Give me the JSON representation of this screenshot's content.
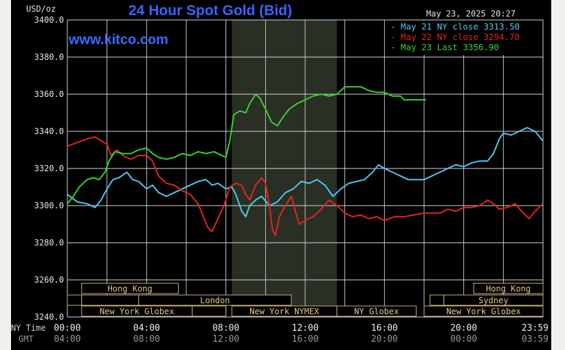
{
  "chart_data": {
    "type": "line",
    "title": "24 Hour Spot Gold (Bid)",
    "unit_label": "USD/oz",
    "date_label": "May 23, 2025 20:27",
    "watermark": "www.kitco.com",
    "ylim": [
      3240,
      3400
    ],
    "yticks": [
      "3400.0",
      "3380.0",
      "3360.0",
      "3340.0",
      "3320.0",
      "3300.0",
      "3280.0",
      "3260.0",
      "3240.0"
    ],
    "ytick_values": [
      3400,
      3380,
      3360,
      3340,
      3320,
      3300,
      3280,
      3260,
      3240
    ],
    "xlim": [
      0,
      24
    ],
    "x_unit": "hours (NY time, 00:00 to 23:59)",
    "xrow1_label": "NY Time",
    "xrow2_label": "GMT",
    "xticks_ny": [
      "00:00",
      "04:00",
      "08:00",
      "12:00",
      "16:00",
      "20:00",
      "23:59"
    ],
    "xticks_gmt": [
      "04:00",
      "08:00",
      "12:00",
      "16:00",
      "20:00",
      "00:00",
      "03:59"
    ],
    "xtick_hours": [
      0,
      4,
      8,
      12,
      16,
      20,
      24
    ],
    "grid": true,
    "legend_position": "top-right",
    "legend": [
      {
        "label": "May 21 NY close",
        "value": "3313.50",
        "color": "#4ec9f0"
      },
      {
        "label": "May 22 NY close",
        "value": "3294.70",
        "color": "#e52420"
      },
      {
        "label": "May 23 Last",
        "value": "3356.90",
        "color": "#33d52f"
      }
    ],
    "shaded_hours": [
      8.3,
      13.6
    ],
    "series": [
      {
        "name": "May 21 NY close",
        "color": "#4ec9f0",
        "points": [
          [
            0,
            3306
          ],
          [
            0.5,
            3302
          ],
          [
            1,
            3301
          ],
          [
            1.4,
            3299
          ],
          [
            1.7,
            3303
          ],
          [
            2,
            3309
          ],
          [
            2.3,
            3314
          ],
          [
            2.6,
            3315
          ],
          [
            3,
            3318
          ],
          [
            3.3,
            3314
          ],
          [
            3.6,
            3313
          ],
          [
            4,
            3309
          ],
          [
            4.3,
            3311
          ],
          [
            4.6,
            3307
          ],
          [
            5,
            3305
          ],
          [
            5.4,
            3307
          ],
          [
            5.8,
            3309
          ],
          [
            6.2,
            3311
          ],
          [
            6.6,
            3313
          ],
          [
            7,
            3314
          ],
          [
            7.3,
            3311
          ],
          [
            7.6,
            3312
          ],
          [
            8,
            3309
          ],
          [
            8.3,
            3310
          ],
          [
            8.5,
            3306
          ],
          [
            8.8,
            3297
          ],
          [
            9,
            3294
          ],
          [
            9.2,
            3300
          ],
          [
            9.5,
            3303
          ],
          [
            9.8,
            3305
          ],
          [
            10.2,
            3300
          ],
          [
            10.6,
            3302
          ],
          [
            11,
            3307
          ],
          [
            11.4,
            3309
          ],
          [
            11.8,
            3313
          ],
          [
            12.2,
            3312
          ],
          [
            12.6,
            3314
          ],
          [
            13,
            3311
          ],
          [
            13.4,
            3305
          ],
          [
            13.8,
            3309
          ],
          [
            14.2,
            3312
          ],
          [
            14.6,
            3313
          ],
          [
            15,
            3314
          ],
          [
            15.4,
            3318
          ],
          [
            15.7,
            3322
          ],
          [
            16,
            3320
          ],
          [
            16.4,
            3318
          ],
          [
            16.8,
            3316
          ],
          [
            17.2,
            3314
          ],
          [
            17.6,
            3314
          ],
          [
            18,
            3314
          ],
          [
            18.4,
            3316
          ],
          [
            18.8,
            3318
          ],
          [
            19.2,
            3320
          ],
          [
            19.6,
            3322
          ],
          [
            20,
            3321
          ],
          [
            20.4,
            3323
          ],
          [
            20.8,
            3324
          ],
          [
            21.2,
            3324
          ],
          [
            21.5,
            3328
          ],
          [
            21.8,
            3336
          ],
          [
            22,
            3339
          ],
          [
            22.4,
            3338
          ],
          [
            22.8,
            3340
          ],
          [
            23.2,
            3342
          ],
          [
            23.6,
            3340
          ],
          [
            23.99,
            3335
          ]
        ]
      },
      {
        "name": "May 22 NY close",
        "color": "#e52420",
        "points": [
          [
            0,
            3332
          ],
          [
            0.5,
            3334
          ],
          [
            1,
            3336
          ],
          [
            1.4,
            3337
          ],
          [
            1.7,
            3335
          ],
          [
            2,
            3333
          ],
          [
            2.2,
            3327
          ],
          [
            2.5,
            3330
          ],
          [
            2.8,
            3327
          ],
          [
            3.2,
            3325
          ],
          [
            3.6,
            3327
          ],
          [
            4,
            3327
          ],
          [
            4.3,
            3324
          ],
          [
            4.6,
            3316
          ],
          [
            5,
            3312
          ],
          [
            5.4,
            3311
          ],
          [
            5.8,
            3308
          ],
          [
            6.2,
            3306
          ],
          [
            6.6,
            3301
          ],
          [
            6.9,
            3293
          ],
          [
            7.1,
            3288
          ],
          [
            7.3,
            3286
          ],
          [
            7.6,
            3293
          ],
          [
            7.9,
            3300
          ],
          [
            8.2,
            3310
          ],
          [
            8.5,
            3312
          ],
          [
            8.8,
            3311
          ],
          [
            9,
            3306
          ],
          [
            9.2,
            3303
          ],
          [
            9.5,
            3311
          ],
          [
            9.8,
            3315
          ],
          [
            10,
            3312
          ],
          [
            10.2,
            3300
          ],
          [
            10.35,
            3287
          ],
          [
            10.5,
            3284
          ],
          [
            10.7,
            3294
          ],
          [
            11,
            3300
          ],
          [
            11.3,
            3305
          ],
          [
            11.5,
            3297
          ],
          [
            11.7,
            3290
          ],
          [
            12,
            3292
          ],
          [
            12.4,
            3294
          ],
          [
            12.8,
            3298
          ],
          [
            13.2,
            3303
          ],
          [
            13.6,
            3300
          ],
          [
            14,
            3296
          ],
          [
            14.4,
            3294
          ],
          [
            14.8,
            3295
          ],
          [
            15.2,
            3293
          ],
          [
            15.6,
            3294
          ],
          [
            16,
            3292
          ],
          [
            16.5,
            3294
          ],
          [
            17,
            3294
          ],
          [
            17.5,
            3295
          ],
          [
            18,
            3296
          ],
          [
            18.4,
            3296
          ],
          [
            18.8,
            3296
          ],
          [
            19.2,
            3298
          ],
          [
            19.6,
            3297
          ],
          [
            20,
            3299
          ],
          [
            20.4,
            3299
          ],
          [
            20.8,
            3300
          ],
          [
            21.2,
            3303
          ],
          [
            21.5,
            3301
          ],
          [
            21.8,
            3298
          ],
          [
            22.2,
            3299
          ],
          [
            22.6,
            3301
          ],
          [
            23,
            3296
          ],
          [
            23.3,
            3293
          ],
          [
            23.6,
            3297
          ],
          [
            23.99,
            3301
          ]
        ]
      },
      {
        "name": "May 23 Last",
        "color": "#33d52f",
        "points": [
          [
            0,
            3301
          ],
          [
            0.3,
            3305
          ],
          [
            0.6,
            3310
          ],
          [
            1,
            3314
          ],
          [
            1.3,
            3315
          ],
          [
            1.6,
            3314
          ],
          [
            1.9,
            3318
          ],
          [
            2.1,
            3324
          ],
          [
            2.4,
            3329
          ],
          [
            2.8,
            3328
          ],
          [
            3.2,
            3328
          ],
          [
            3.6,
            3330
          ],
          [
            4,
            3331
          ],
          [
            4.3,
            3328
          ],
          [
            4.6,
            3326
          ],
          [
            5,
            3325
          ],
          [
            5.4,
            3326
          ],
          [
            5.8,
            3328
          ],
          [
            6.2,
            3327
          ],
          [
            6.6,
            3329
          ],
          [
            7,
            3328
          ],
          [
            7.4,
            3329
          ],
          [
            7.8,
            3327
          ],
          [
            8,
            3326
          ],
          [
            8.2,
            3335
          ],
          [
            8.4,
            3349
          ],
          [
            8.7,
            3351
          ],
          [
            9,
            3350
          ],
          [
            9.2,
            3355
          ],
          [
            9.5,
            3360
          ],
          [
            9.7,
            3358
          ],
          [
            10,
            3352
          ],
          [
            10.3,
            3345
          ],
          [
            10.6,
            3343
          ],
          [
            10.9,
            3348
          ],
          [
            11.2,
            3352
          ],
          [
            11.6,
            3355
          ],
          [
            12,
            3357
          ],
          [
            12.4,
            3359
          ],
          [
            12.8,
            3360
          ],
          [
            13.2,
            3359
          ],
          [
            13.6,
            3360
          ],
          [
            14,
            3364
          ],
          [
            14.4,
            3364
          ],
          [
            14.8,
            3364
          ],
          [
            15.2,
            3362
          ],
          [
            15.6,
            3361
          ],
          [
            16,
            3361
          ],
          [
            16.4,
            3359
          ],
          [
            16.8,
            3359
          ],
          [
            17,
            3357
          ],
          [
            17.4,
            3357
          ],
          [
            17.8,
            3357
          ],
          [
            18.1,
            3357
          ]
        ]
      }
    ],
    "sessions": [
      {
        "label": "Hong Kong",
        "row": 1,
        "start": 0.72,
        "end": 5.6
      },
      {
        "label": "",
        "row": 2,
        "start": 0,
        "end": 0.72
      },
      {
        "label": "",
        "row": 2,
        "start": 0.72,
        "end": 3.6
      },
      {
        "label": "London",
        "row": 2,
        "start": 3.6,
        "end": 11.3
      },
      {
        "label": "New York Globex",
        "row": 3,
        "start": 0.72,
        "end": 6.3
      },
      {
        "label": "",
        "row": 3,
        "start": 6.3,
        "end": 8.0
      },
      {
        "label": "New York NYMEX",
        "row": 3,
        "start": 8.3,
        "end": 13.6
      },
      {
        "label": "NY Globex",
        "row": 3,
        "start": 13.6,
        "end": 17.6
      },
      {
        "label": "Hong Kong",
        "row": 1,
        "start": 20.5,
        "end": 24
      },
      {
        "label": "",
        "row": 2,
        "start": 18.3,
        "end": 19.0
      },
      {
        "label": "Sydney",
        "row": 2,
        "start": 19.0,
        "end": 24
      },
      {
        "label": "New York Globex",
        "row": 3,
        "start": 18.0,
        "end": 24
      }
    ]
  }
}
